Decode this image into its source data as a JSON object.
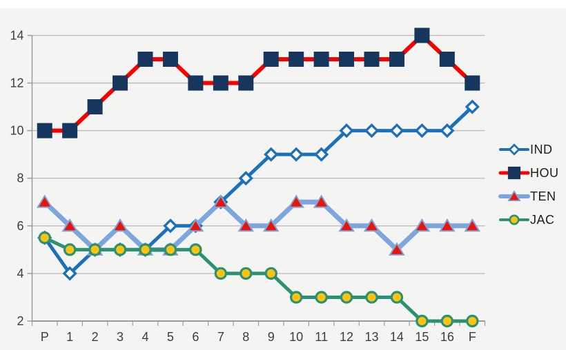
{
  "chart_data": {
    "type": "line",
    "title": "",
    "xlabel": "",
    "ylabel": "",
    "x_categories": [
      "P",
      "1",
      "2",
      "3",
      "4",
      "5",
      "6",
      "7",
      "8",
      "9",
      "10",
      "11",
      "12",
      "13",
      "14",
      "15",
      "16",
      "F"
    ],
    "y_ticks": [
      2,
      4,
      6,
      8,
      10,
      12,
      14
    ],
    "ylim": [
      2,
      14.7
    ],
    "grid": "horizontal",
    "legend_position": "right",
    "axis_colors": {
      "gridline": "#bdbdbd",
      "axis_line": "#9b9b9b",
      "tick": "#9b9b9b",
      "label": "#3d3d3d"
    },
    "series": [
      {
        "name": "IND",
        "line_color": "#1c6fba",
        "line_width": 5,
        "marker": "diamond",
        "marker_fill": "#ffffff",
        "marker_stroke": "#1c6fba",
        "values": [
          5.5,
          4,
          5,
          5,
          5,
          6,
          6,
          7,
          8,
          9,
          9,
          9,
          10,
          10,
          10,
          10,
          10,
          11
        ]
      },
      {
        "name": "HOU",
        "line_color": "#f80000",
        "line_width": 6,
        "marker": "square",
        "marker_fill": "#16365d",
        "marker_stroke": "#16365d",
        "values": [
          10,
          10,
          11,
          12,
          13,
          13,
          12,
          12,
          12,
          13,
          13,
          13,
          13,
          13,
          13,
          14,
          13,
          12
        ]
      },
      {
        "name": "TEN",
        "line_color": "#7da7dc",
        "line_width": 7,
        "marker": "triangle",
        "marker_fill": "#e8150d",
        "marker_stroke": "#7da7dc",
        "values": [
          7,
          6,
          5,
          6,
          5,
          5,
          6,
          7,
          6,
          6,
          7,
          7,
          6,
          6,
          5,
          6,
          6,
          6
        ]
      },
      {
        "name": "JAC",
        "line_color": "#2b9173",
        "line_width": 5,
        "marker": "circle",
        "marker_fill": "#ffc20e",
        "marker_stroke": "#2b9173",
        "values": [
          5.5,
          5,
          5,
          5,
          5,
          5,
          5,
          4,
          4,
          4,
          3,
          3,
          3,
          3,
          3,
          2,
          2,
          2
        ]
      }
    ]
  }
}
